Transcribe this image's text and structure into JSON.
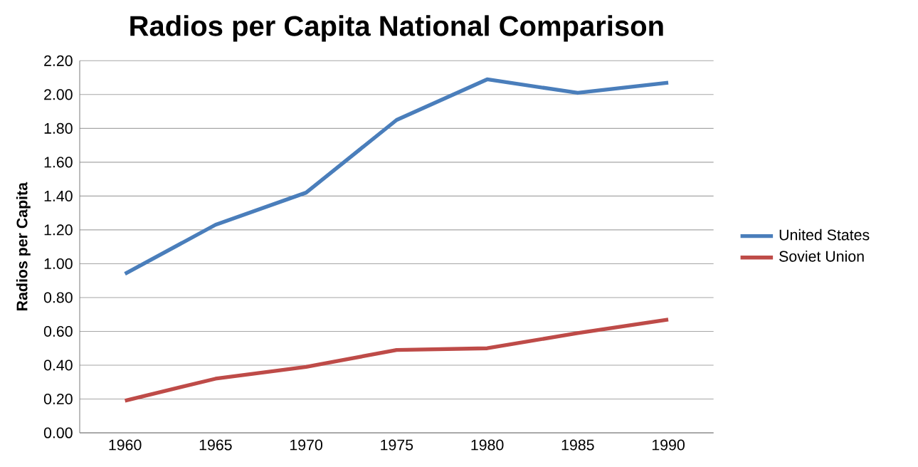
{
  "chart_data": {
    "type": "line",
    "title": "Radios per Capita National Comparison",
    "ylabel": "Radios per Capita",
    "categories": [
      "1960",
      "1965",
      "1970",
      "1975",
      "1980",
      "1985",
      "1990"
    ],
    "series": [
      {
        "name": "United States",
        "color": "#4a7ebb",
        "values": [
          0.94,
          1.23,
          1.42,
          1.85,
          2.09,
          2.01,
          2.07
        ]
      },
      {
        "name": "Soviet Union",
        "color": "#be4b48",
        "values": [
          0.19,
          0.32,
          0.39,
          0.49,
          0.5,
          0.59,
          0.67
        ]
      }
    ],
    "ylim": [
      0,
      2.2
    ],
    "yticks": [
      {
        "value": 0,
        "label": "0.00"
      },
      {
        "value": 0.2,
        "label": "0.20"
      },
      {
        "value": 0.4,
        "label": "0.40"
      },
      {
        "value": 0.6,
        "label": "0.60"
      },
      {
        "value": 0.8,
        "label": "0.80"
      },
      {
        "value": 1.0,
        "label": "1.00"
      },
      {
        "value": 1.2,
        "label": "1.20"
      },
      {
        "value": 1.4,
        "label": "1.40"
      },
      {
        "value": 1.6,
        "label": "1.60"
      },
      {
        "value": 1.8,
        "label": "1.80"
      },
      {
        "value": 2.0,
        "label": "2.00"
      },
      {
        "value": 2.2,
        "label": "2.20"
      }
    ],
    "grid": "y",
    "legend": "right",
    "marker": "none",
    "line_style": "solid"
  }
}
